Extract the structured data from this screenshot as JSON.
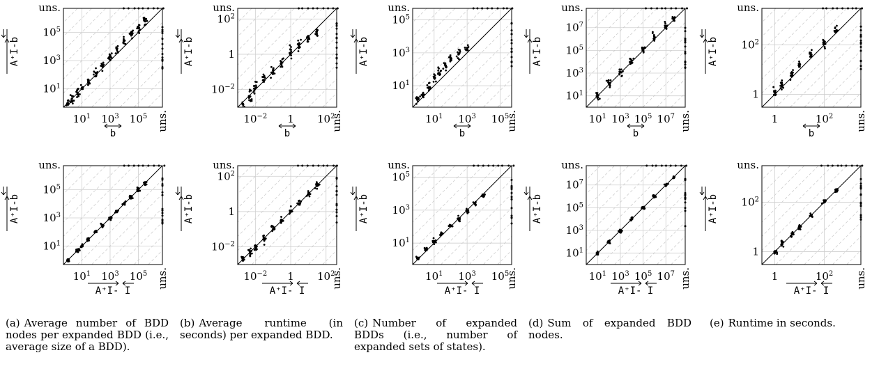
{
  "figure": {
    "unsolved_label": "uns.",
    "y_axis_label": "A⁺I-b",
    "x_axis_labels": {
      "top_row": "b",
      "bottom_row": "A⁺I- I"
    }
  },
  "captions": [
    {
      "label": "(a)",
      "text": "Average number of BDD nodes per expanded BDD (i.e., average size of a BDD)."
    },
    {
      "label": "(b)",
      "text": "Average runtime (in seconds) per expanded BDD."
    },
    {
      "label": "(c)",
      "text": "Number of expanded BDDs (i.e., number of expanded sets of states)."
    },
    {
      "label": "(d)",
      "text": "Sum of expanded BDD nodes."
    },
    {
      "label": "(e)",
      "text": "Runtime in seconds."
    }
  ],
  "chart_data": [
    {
      "type": "scatter",
      "panel": "a",
      "row": "top",
      "scale": "log",
      "lim": [
        0.5,
        5000000
      ],
      "ticks": [
        10,
        1000,
        100000
      ],
      "tick_labels": [
        "10^1",
        "10^3",
        "10^5"
      ],
      "xlabel": "b",
      "ylabel": "A⁺I-b",
      "unsolved_label": "uns.",
      "grid": true,
      "diagonal": true,
      "spread": 0.5,
      "x": [
        1,
        2,
        5,
        10,
        30,
        100,
        300,
        1000,
        3000,
        10000,
        30000,
        100000,
        300000
      ],
      "y": [
        1,
        2,
        5,
        11,
        28,
        130,
        350,
        1800,
        6500,
        24000,
        80000,
        200000,
        600000
      ]
    },
    {
      "type": "scatter",
      "panel": "b",
      "row": "top",
      "scale": "log",
      "lim": [
        0.001,
        400
      ],
      "ticks": [
        0.01,
        1,
        100
      ],
      "tick_labels": [
        "10^-2",
        "1",
        "10^2"
      ],
      "xlabel": "b",
      "ylabel": "A⁺I-b",
      "unsolved_label": "uns.",
      "grid": true,
      "diagonal": true,
      "spread": 0.7,
      "x": [
        0.002,
        0.005,
        0.01,
        0.03,
        0.1,
        0.3,
        1,
        3,
        10,
        30
      ],
      "y": [
        0.0015,
        0.004,
        0.012,
        0.035,
        0.12,
        0.35,
        1.2,
        3.5,
        8,
        20
      ]
    },
    {
      "type": "scatter",
      "panel": "c",
      "row": "top",
      "scale": "log",
      "lim": [
        0.5,
        500000
      ],
      "ticks": [
        10,
        1000,
        100000
      ],
      "tick_labels": [
        "10^1",
        "10^3",
        "10^5"
      ],
      "xlabel": "b",
      "ylabel": "A⁺I-b",
      "unsolved_label": "uns.",
      "grid": true,
      "diagonal": true,
      "spread": 0.5,
      "x": [
        1,
        2,
        5,
        10,
        20,
        50,
        100,
        300,
        1000
      ],
      "y": [
        1.5,
        3,
        8,
        30,
        60,
        150,
        400,
        800,
        2000
      ]
    },
    {
      "type": "scatter",
      "panel": "d",
      "row": "top",
      "scale": "log",
      "lim": [
        1,
        500000000
      ],
      "ticks": [
        10,
        1000,
        100000,
        10000000
      ],
      "tick_labels": [
        "10^1",
        "10^3",
        "10^5",
        "10^7"
      ],
      "xlabel": "b",
      "ylabel": "A⁺I-b",
      "unsolved_label": "uns.",
      "grid": true,
      "diagonal": true,
      "spread": 0.5,
      "x": [
        10,
        100,
        1000,
        10000,
        100000,
        1000000,
        10000000,
        50000000
      ],
      "y": [
        10,
        110,
        1200,
        13000,
        150000,
        1500000,
        14000000,
        60000000
      ]
    },
    {
      "type": "scatter",
      "panel": "e",
      "row": "top",
      "scale": "log",
      "lim": [
        0.3,
        3000
      ],
      "ticks": [
        1,
        100
      ],
      "tick_labels": [
        "1",
        "10^2"
      ],
      "xlabel": "b",
      "ylabel": "A⁺I-b",
      "unsolved_label": "uns.",
      "grid": true,
      "diagonal": true,
      "spread": 0.55,
      "x": [
        1,
        2,
        5,
        10,
        30,
        100,
        300
      ],
      "y": [
        1.2,
        2.5,
        7,
        15,
        40,
        120,
        350
      ]
    },
    {
      "type": "scatter",
      "panel": "a",
      "row": "bottom",
      "scale": "log",
      "lim": [
        0.5,
        5000000
      ],
      "ticks": [
        10,
        1000,
        100000
      ],
      "tick_labels": [
        "10^1",
        "10^3",
        "10^5"
      ],
      "xlabel": "A⁺I- I",
      "ylabel": "A⁺I-b",
      "unsolved_label": "uns.",
      "grid": true,
      "diagonal": true,
      "spread": 0.2,
      "x": [
        1,
        5,
        10,
        30,
        100,
        300,
        1000,
        3000,
        10000,
        30000,
        100000,
        300000
      ],
      "y": [
        1,
        5,
        10,
        30,
        100,
        300,
        1000,
        3000,
        10000,
        30000,
        100000,
        300000
      ]
    },
    {
      "type": "scatter",
      "panel": "b",
      "row": "bottom",
      "scale": "log",
      "lim": [
        0.001,
        400
      ],
      "ticks": [
        0.01,
        1,
        100
      ],
      "tick_labels": [
        "10^-2",
        "1",
        "10^2"
      ],
      "xlabel": "A⁺I- I",
      "ylabel": "A⁺I-b",
      "unsolved_label": "uns.",
      "grid": true,
      "diagonal": true,
      "spread": 0.45,
      "x": [
        0.002,
        0.005,
        0.01,
        0.03,
        0.1,
        0.3,
        1,
        3,
        10,
        30
      ],
      "y": [
        0.002,
        0.005,
        0.01,
        0.03,
        0.1,
        0.3,
        1,
        3,
        10,
        30
      ]
    },
    {
      "type": "scatter",
      "panel": "c",
      "row": "bottom",
      "scale": "log",
      "lim": [
        0.5,
        500000
      ],
      "ticks": [
        10,
        1000,
        100000
      ],
      "tick_labels": [
        "10^1",
        "10^3",
        "10^5"
      ],
      "xlabel": "A⁺I- I",
      "ylabel": "A⁺I-b",
      "unsolved_label": "uns.",
      "grid": true,
      "diagonal": true,
      "spread": 0.25,
      "x": [
        1,
        3,
        10,
        30,
        100,
        300,
        1000,
        3000,
        10000
      ],
      "y": [
        1.2,
        4,
        13,
        35,
        120,
        300,
        900,
        2500,
        8000
      ]
    },
    {
      "type": "scatter",
      "panel": "d",
      "row": "bottom",
      "scale": "log",
      "lim": [
        1,
        500000000
      ],
      "ticks": [
        10,
        1000,
        100000,
        10000000
      ],
      "tick_labels": [
        "10^1",
        "10^3",
        "10^5",
        "10^7"
      ],
      "xlabel": "A⁺I- I",
      "ylabel": "A⁺I-b",
      "unsolved_label": "uns.",
      "grid": true,
      "diagonal": true,
      "spread": 0.2,
      "x": [
        10,
        100,
        1000,
        10000,
        100000,
        1000000,
        10000000,
        50000000
      ],
      "y": [
        10,
        100,
        1000,
        10000,
        100000,
        1000000,
        10000000,
        50000000
      ]
    },
    {
      "type": "scatter",
      "panel": "e",
      "row": "bottom",
      "scale": "log",
      "lim": [
        0.3,
        3000
      ],
      "ticks": [
        1,
        100
      ],
      "tick_labels": [
        "1",
        "10^2"
      ],
      "xlabel": "A⁺I- I",
      "ylabel": "A⁺I-b",
      "unsolved_label": "uns.",
      "grid": true,
      "diagonal": true,
      "spread": 0.3,
      "x": [
        1,
        2,
        5,
        10,
        30,
        100,
        300
      ],
      "y": [
        1,
        2,
        5,
        10,
        30,
        100,
        300
      ]
    }
  ]
}
